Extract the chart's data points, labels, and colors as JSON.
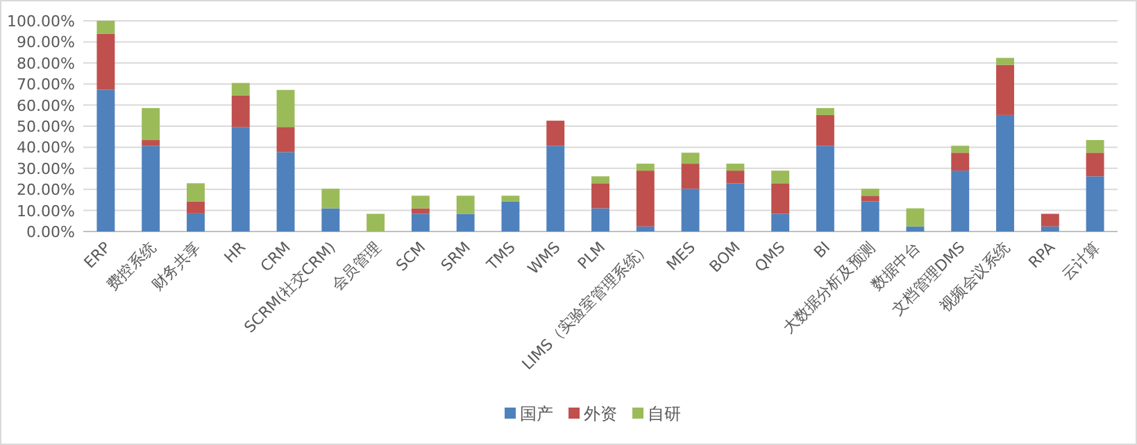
{
  "chart_data": {
    "type": "bar",
    "stacked": true,
    "grid": "y",
    "legend": "bottom",
    "categories": [
      "ERP",
      "费控系统",
      "财务共享",
      "HR",
      "CRM",
      "SCRM(社交CRM)",
      "会员管理",
      "SCM",
      "SRM",
      "TMS",
      "WMS",
      "PLM",
      "LIMS（实验室管理系统）",
      "MES",
      "BOM",
      "QMS",
      "BI",
      "大数据分析及预测",
      "数据中台",
      "文档管理DMS",
      "视频会议系统",
      "RPA",
      "云计算"
    ],
    "series": [
      {
        "name": "国产",
        "color": "#4f81bd",
        "values": [
          67.3,
          40.7,
          8.6,
          49.6,
          37.7,
          11.0,
          0,
          8.4,
          8.4,
          14.3,
          40.7,
          11.0,
          2.4,
          20.3,
          22.9,
          8.4,
          40.7,
          14.3,
          2.4,
          28.9,
          55.3,
          2.4,
          26.2
        ]
      },
      {
        "name": "外资",
        "color": "#c0504d",
        "values": [
          26.5,
          2.7,
          5.7,
          14.9,
          11.9,
          0,
          0,
          2.6,
          0,
          0,
          11.9,
          11.9,
          26.5,
          11.9,
          6.0,
          14.5,
          14.6,
          2.7,
          0,
          8.5,
          23.8,
          6.0,
          11.2
        ]
      },
      {
        "name": "自研",
        "color": "#9bbb59",
        "values": [
          6.2,
          15.2,
          8.6,
          6.0,
          17.6,
          9.3,
          8.4,
          6.0,
          8.6,
          2.7,
          0,
          3.3,
          3.3,
          5.2,
          3.3,
          6.0,
          3.3,
          3.3,
          8.6,
          3.3,
          3.3,
          0,
          6.0
        ]
      }
    ],
    "ylim": [
      0,
      100
    ],
    "yticks": [
      {
        "value": 0,
        "label": "0.00%"
      },
      {
        "value": 10,
        "label": "10.00%"
      },
      {
        "value": 20,
        "label": "20.00%"
      },
      {
        "value": 30,
        "label": "30.00%"
      },
      {
        "value": 40,
        "label": "40.00%"
      },
      {
        "value": 50,
        "label": "50.00%"
      },
      {
        "value": 60,
        "label": "60.00%"
      },
      {
        "value": 70,
        "label": "70.00%"
      },
      {
        "value": 80,
        "label": "80.00%"
      },
      {
        "value": 90,
        "label": "90.00%"
      },
      {
        "value": 100,
        "label": "100.00%"
      }
    ]
  }
}
